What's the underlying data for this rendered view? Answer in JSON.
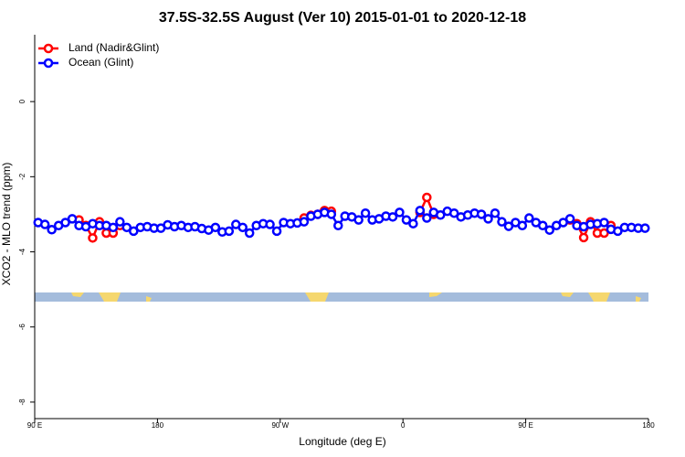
{
  "chart_data": {
    "type": "line",
    "title": "37.5S-32.5S August (Ver 10)   2015-01-01 to 2020-12-18",
    "x_label": "Longitude (deg E)",
    "y_label": "XCO2 - MLO trend (ppm)",
    "xlim": [
      90,
      540
    ],
    "xticks": [
      {
        "value": 90,
        "label": "90 E"
      },
      {
        "value": 180,
        "label": "180"
      },
      {
        "value": 270,
        "label": "90 W"
      },
      {
        "value": 360,
        "label": "0"
      },
      {
        "value": 450,
        "label": "90 E"
      },
      {
        "value": 540,
        "label": "180"
      }
    ],
    "ylim": [
      -8.44,
      1.78
    ],
    "yticks": [
      0,
      -2,
      -4,
      -6,
      -8
    ],
    "legend": "top-left",
    "x": [
      92.5,
      97.5,
      102.5,
      107.5,
      112.5,
      117.5,
      122.5,
      127.5,
      132.5,
      137.5,
      142.5,
      147.5,
      152.5,
      157.5,
      162.5,
      167.5,
      172.5,
      177.5,
      182.5,
      187.5,
      192.5,
      197.5,
      202.5,
      207.5,
      212.5,
      217.5,
      222.5,
      227.5,
      232.5,
      237.5,
      242.5,
      247.5,
      252.5,
      257.5,
      262.5,
      267.5,
      272.5,
      277.5,
      282.5,
      287.5,
      292.5,
      297.5,
      302.5,
      307.5,
      312.5,
      317.5,
      322.5,
      327.5,
      332.5,
      337.5,
      342.5,
      347.5,
      352.5,
      357.5,
      362.5,
      367.5,
      372.5,
      377.5,
      382.5,
      387.5,
      392.5,
      397.5,
      402.5,
      407.5,
      412.5,
      417.5,
      422.5,
      427.5,
      432.5,
      437.5,
      442.5,
      447.5,
      452.5,
      457.5,
      462.5,
      467.5,
      472.5,
      477.5,
      482.5,
      487.5,
      492.5,
      497.5,
      502.5,
      507.5,
      512.5,
      517.5,
      522.5,
      527.5,
      532.5,
      537.5
    ],
    "series": [
      {
        "name": "Land (Nadir&Glint)",
        "color": "#ff0000",
        "values": [
          null,
          null,
          null,
          null,
          null,
          null,
          -3.15,
          -3.3,
          -3.63,
          -3.2,
          -3.5,
          -3.5,
          -3.3,
          null,
          null,
          null,
          null,
          null,
          null,
          null,
          null,
          null,
          null,
          null,
          null,
          null,
          null,
          null,
          null,
          null,
          null,
          null,
          null,
          null,
          null,
          null,
          null,
          null,
          null,
          -3.1,
          -3.03,
          -3.0,
          -2.9,
          -2.92,
          null,
          null,
          null,
          null,
          null,
          null,
          null,
          null,
          null,
          null,
          null,
          null,
          -2.95,
          -2.55,
          -3.0,
          null,
          null,
          null,
          null,
          null,
          null,
          null,
          null,
          null,
          null,
          null,
          null,
          null,
          null,
          null,
          null,
          null,
          null,
          null,
          -3.15,
          -3.25,
          -3.62,
          -3.2,
          -3.5,
          -3.5,
          -3.3,
          null,
          null,
          null,
          null,
          null
        ]
      },
      {
        "name": "Ocean (Glint)",
        "color": "#0000ff",
        "values": [
          -3.22,
          -3.27,
          -3.41,
          -3.3,
          -3.22,
          -3.12,
          -3.3,
          -3.33,
          -3.25,
          -3.3,
          -3.3,
          -3.35,
          -3.2,
          -3.35,
          -3.45,
          -3.35,
          -3.33,
          -3.37,
          -3.37,
          -3.28,
          -3.33,
          -3.3,
          -3.35,
          -3.33,
          -3.38,
          -3.42,
          -3.35,
          -3.47,
          -3.45,
          -3.27,
          -3.35,
          -3.5,
          -3.3,
          -3.25,
          -3.27,
          -3.45,
          -3.22,
          -3.25,
          -3.23,
          -3.2,
          -3.05,
          -3.0,
          -2.95,
          -3.0,
          -3.3,
          -3.05,
          -3.07,
          -3.15,
          -2.97,
          -3.15,
          -3.12,
          -3.05,
          -3.07,
          -2.95,
          -3.15,
          -3.25,
          -2.9,
          -3.1,
          -2.95,
          -3.02,
          -2.92,
          -2.97,
          -3.07,
          -3.02,
          -2.97,
          -3.0,
          -3.12,
          -2.97,
          -3.2,
          -3.32,
          -3.22,
          -3.3,
          -3.1,
          -3.22,
          -3.3,
          -3.42,
          -3.3,
          -3.22,
          -3.12,
          -3.3,
          -3.33,
          -3.27,
          -3.25,
          -3.22,
          -3.4,
          -3.45,
          -3.35,
          -3.35,
          -3.37,
          -3.37
        ]
      }
    ]
  }
}
